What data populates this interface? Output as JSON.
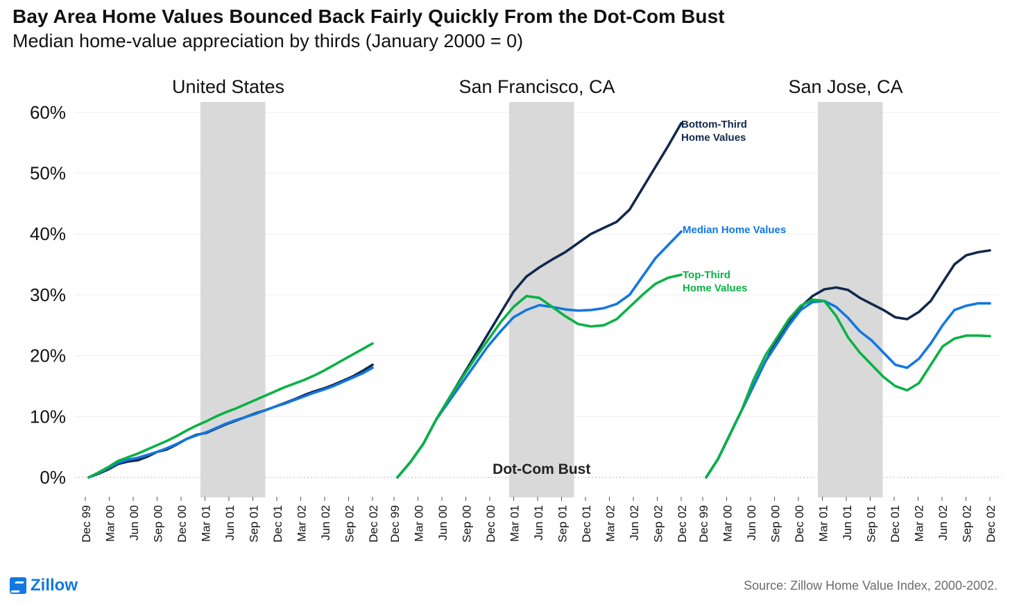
{
  "title": "Bay Area Home Values Bounced Back Fairly Quickly From the Dot-Com Bust",
  "subtitle": "Median home-value appreciation by thirds (January 2000 = 0)",
  "source": "Source: Zillow Home Value Index, 2000-2002.",
  "logo_text": "Zillow",
  "colors": {
    "bottom_third": "#12294d",
    "median": "#1277e1",
    "top_third": "#0ab145",
    "shade": "#d9d9d9",
    "grid": "#eeeeee"
  },
  "shade_label": "Dot-Com Bust",
  "chart_data": {
    "type": "line",
    "y_ticks": [
      "0%",
      "10%",
      "20%",
      "30%",
      "40%",
      "50%",
      "60%"
    ],
    "ylim": [
      0,
      60
    ],
    "x_ticks": [
      "Dec 99",
      "Mar 00",
      "Jun 00",
      "Sep 00",
      "Dec 00",
      "Mar 01",
      "Jun 01",
      "Sep 01",
      "Dec 01",
      "Mar 02",
      "Jun 02",
      "Sep 02",
      "Dec 02"
    ],
    "shaded_period": [
      "Feb 01",
      "Nov 01"
    ],
    "line_labels": {
      "bottom_third": [
        "Bottom-Third",
        "Home Values"
      ],
      "median": [
        "Median Home Values"
      ],
      "top_third": [
        "Top-Third",
        "Home Values"
      ]
    },
    "panels": [
      {
        "name": "United States",
        "series": [
          {
            "name": "Bottom-Third Home Values",
            "key": "bottom_third",
            "start": "Jan 00",
            "values": [
              0,
              0.6,
              1.3,
              2.2,
              2.6,
              2.8,
              3.4,
              4.2,
              4.6,
              5.4,
              6.3,
              7.0,
              7.3,
              8.0,
              8.7,
              9.3,
              9.9,
              10.5,
              11.0,
              11.6,
              12.2,
              12.8,
              13.5,
              14.1,
              14.6,
              15.2,
              15.9,
              16.6,
              17.5,
              18.5
            ]
          },
          {
            "name": "Median Home Values",
            "key": "median",
            "start": "Jan 00",
            "values": [
              0,
              0.7,
              1.5,
              2.4,
              2.9,
              3.2,
              3.7,
              4.2,
              4.8,
              5.5,
              6.3,
              6.9,
              7.4,
              8.1,
              8.8,
              9.4,
              9.9,
              10.4,
              11.0,
              11.6,
              12.1,
              12.7,
              13.3,
              13.9,
              14.4,
              15.0,
              15.7,
              16.4,
              17.1,
              18.0
            ]
          },
          {
            "name": "Top-Third Home Values",
            "key": "top_third",
            "start": "Jan 00",
            "values": [
              0,
              0.8,
              1.7,
              2.7,
              3.3,
              3.9,
              4.6,
              5.3,
              6.0,
              6.8,
              7.7,
              8.5,
              9.2,
              10.0,
              10.7,
              11.3,
              12.0,
              12.7,
              13.4,
              14.1,
              14.8,
              15.4,
              16.0,
              16.7,
              17.5,
              18.4,
              19.3,
              20.2,
              21.1,
              22.0
            ]
          }
        ]
      },
      {
        "name": "San Francisco, CA",
        "series": [
          {
            "name": "Bottom-Third Home Values",
            "key": "bottom_third",
            "start": "Jan 00",
            "values": [
              0,
              2.5,
              5.5,
              9.5,
              13.0,
              16.5,
              20.0,
              23.5,
              27.0,
              30.5,
              33.0,
              34.5,
              35.8,
              37.0,
              38.5,
              40.0,
              41.0,
              42.0,
              44.0,
              47.5,
              51.0,
              54.5,
              58.2
            ]
          },
          {
            "name": "Median Home Values",
            "key": "median",
            "start": "Jan 00",
            "values": [
              0,
              2.5,
              5.5,
              9.5,
              12.5,
              15.5,
              18.5,
              21.5,
              24.0,
              26.3,
              27.5,
              28.3,
              28.0,
              27.6,
              27.4,
              27.5,
              27.8,
              28.5,
              30.0,
              33.0,
              36.0,
              38.2,
              40.4
            ]
          },
          {
            "name": "Top-Third Home Values",
            "key": "top_third",
            "start": "Jan 00",
            "values": [
              0,
              2.5,
              5.5,
              9.5,
              13.0,
              16.3,
              19.5,
              22.5,
              25.5,
              28.0,
              29.8,
              29.5,
              28.0,
              26.5,
              25.2,
              24.8,
              25.0,
              26.0,
              28.0,
              30.0,
              31.8,
              32.8,
              33.3
            ]
          }
        ]
      },
      {
        "name": "San Jose, CA",
        "series": [
          {
            "name": "Bottom-Third Home Values",
            "key": "bottom_third",
            "start": "Jan 00",
            "values": [
              0,
              3,
              7,
              11,
              15,
              19,
              22.5,
              25.5,
              28,
              29.8,
              30.9,
              31.2,
              30.8,
              29.5,
              28.5,
              27.5,
              26.3,
              26.0,
              27.2,
              29.0,
              32.0,
              35.0,
              36.5,
              37.0,
              37.3
            ]
          },
          {
            "name": "Median Home Values",
            "key": "median",
            "start": "Jan 00",
            "values": [
              0,
              3,
              7,
              11,
              15,
              19,
              22,
              25,
              27.5,
              28.8,
              29,
              28,
              26.2,
              24.0,
              22.5,
              20.5,
              18.5,
              18.0,
              19.5,
              22.0,
              25.0,
              27.5,
              28.2,
              28.6,
              28.6
            ]
          },
          {
            "name": "Top-Third Home Values",
            "key": "top_third",
            "start": "Jan 00",
            "values": [
              0,
              3,
              7,
              11,
              16,
              20,
              23,
              26,
              28.2,
              29.2,
              29,
              26.5,
              23.0,
              20.5,
              18.5,
              16.5,
              15.0,
              14.3,
              15.5,
              18.5,
              21.5,
              22.8,
              23.3,
              23.3,
              23.2
            ]
          }
        ]
      }
    ]
  }
}
